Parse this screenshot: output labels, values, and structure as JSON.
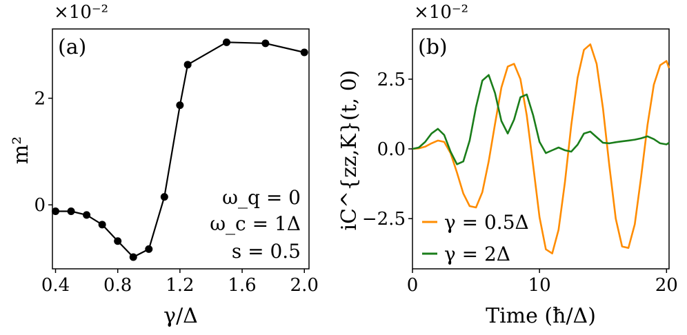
{
  "chart_data": [
    {
      "type": "line",
      "panel_label": "(a)",
      "multiplier": "×10⁻²",
      "xlabel": "γ/Δ",
      "ylabel": "m²",
      "xlim": [
        0.38,
        2.03
      ],
      "ylim": [
        -1.2,
        3.3
      ],
      "xticks": [
        0.4,
        0.8,
        1.2,
        1.6,
        2.0
      ],
      "xtick_labels": [
        "0.4",
        "0.8",
        "1.2",
        "1.6",
        "2.0"
      ],
      "yticks": [
        0,
        2
      ],
      "ytick_labels": [
        "0",
        "2"
      ],
      "grid": false,
      "color": "#000000",
      "series": [
        {
          "x": [
            0.4,
            0.5,
            0.6,
            0.7,
            0.8,
            0.9,
            1.0,
            1.1,
            1.2,
            1.25,
            1.5,
            1.75,
            2.0
          ],
          "y": [
            -0.12,
            -0.12,
            -0.19,
            -0.37,
            -0.68,
            -0.98,
            -0.83,
            0.15,
            1.87,
            2.63,
            3.05,
            3.03,
            2.86
          ]
        }
      ],
      "annotations": [
        "ω_q = 0",
        "ω_c = 1Δ",
        "s = 0.5"
      ]
    },
    {
      "type": "line",
      "panel_label": "(b)",
      "multiplier": "×10⁻²",
      "xlabel": "Time (ħ/Δ)",
      "ylabel": "iC^{zz,K}(t, 0)",
      "xlim": [
        0,
        20.2
      ],
      "ylim": [
        -4.3,
        4.3
      ],
      "xticks": [
        0,
        10,
        20
      ],
      "xtick_labels": [
        "0",
        "10",
        "20"
      ],
      "yticks": [
        -2.5,
        0.0,
        2.5
      ],
      "ytick_labels": [
        "−2.5",
        "0.0",
        "2.5"
      ],
      "grid": false,
      "legend_position": "bottom-left",
      "series": [
        {
          "name": "γ = 0.5Δ",
          "color": "#ff8c00",
          "x": [
            0,
            0.5,
            1,
            1.5,
            2,
            2.5,
            3,
            3.5,
            4,
            4.5,
            5,
            5.5,
            6,
            6.5,
            7,
            7.5,
            8,
            8.5,
            9,
            9.5,
            10,
            10.5,
            11,
            11.5,
            12,
            12.5,
            13,
            13.5,
            14,
            14.5,
            15,
            15.5,
            16,
            16.5,
            17,
            17.5,
            18,
            18.5,
            19,
            19.5,
            20,
            20.2
          ],
          "y": [
            0.0,
            0.02,
            0.08,
            0.2,
            0.3,
            0.25,
            -0.15,
            -0.85,
            -1.6,
            -2.05,
            -2.1,
            -1.55,
            -0.45,
            0.9,
            2.2,
            2.95,
            3.05,
            2.5,
            1.2,
            -0.6,
            -2.45,
            -3.6,
            -3.75,
            -2.9,
            -1.2,
            0.85,
            2.55,
            3.55,
            3.75,
            3.05,
            1.45,
            -0.6,
            -2.5,
            -3.5,
            -3.55,
            -2.7,
            -1.0,
            0.85,
            2.3,
            3.0,
            3.15,
            2.9
          ]
        },
        {
          "name": "γ = 2Δ",
          "color": "#1a7d1a",
          "x": [
            0,
            0.5,
            1,
            1.5,
            2,
            2.5,
            3,
            3.5,
            4,
            4.5,
            5,
            5.5,
            6,
            6.5,
            7,
            7.5,
            8,
            8.5,
            9,
            9.5,
            10,
            10.5,
            11,
            11.5,
            12,
            12.5,
            13,
            13.5,
            14,
            14.5,
            15,
            15.5,
            16,
            16.5,
            17,
            17.5,
            18,
            18.5,
            19,
            19.5,
            20,
            20.2
          ],
          "y": [
            0.0,
            0.05,
            0.25,
            0.55,
            0.72,
            0.5,
            -0.1,
            -0.55,
            -0.45,
            0.3,
            1.5,
            2.45,
            2.65,
            2.0,
            1.0,
            0.55,
            1.05,
            1.85,
            1.95,
            1.2,
            0.25,
            -0.15,
            -0.05,
            0.05,
            -0.05,
            -0.1,
            0.15,
            0.55,
            0.62,
            0.42,
            0.22,
            0.2,
            0.24,
            0.27,
            0.3,
            0.33,
            0.38,
            0.45,
            0.35,
            0.2,
            0.16,
            0.22
          ]
        }
      ]
    }
  ]
}
